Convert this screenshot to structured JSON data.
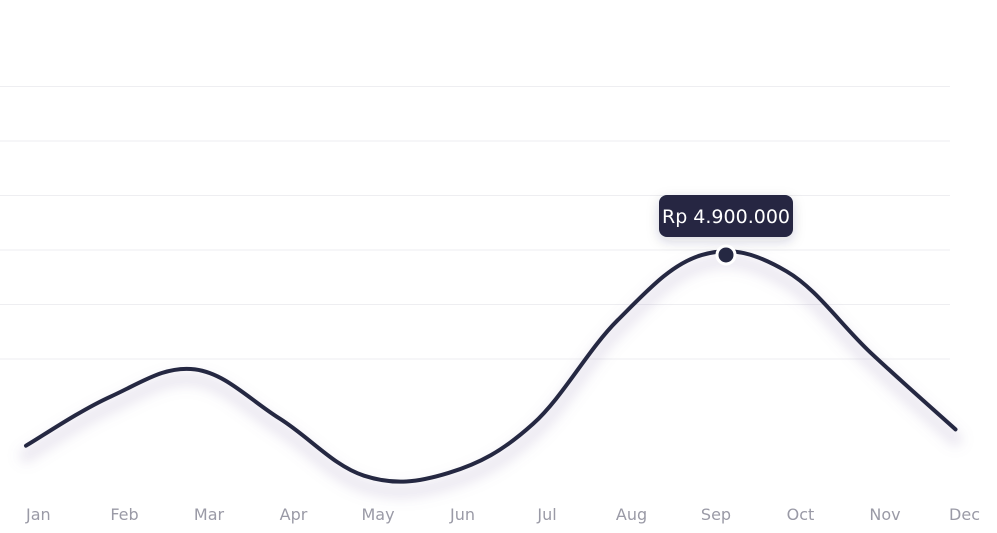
{
  "chart_data": {
    "type": "line",
    "categories": [
      "Jan",
      "Feb",
      "Mar",
      "Apr",
      "May",
      "Jun",
      "Jul",
      "Aug",
      "Sep",
      "Oct",
      "Nov",
      "Dec"
    ],
    "series": [
      {
        "values": [
          1400000,
          2300000,
          2800000,
          1900000,
          850000,
          900000,
          1800000,
          3700000,
          4900000,
          4600000,
          3100000,
          1700000
        ]
      }
    ],
    "ylim": [
      0,
      8000000
    ],
    "grid": true,
    "highlight": {
      "category": "Sep",
      "value": 4900000,
      "label": "Rp 4.900.000"
    },
    "colors": {
      "line": "#252842",
      "grid": "#eeeef1",
      "tick_label": "#9a9aa6",
      "tooltip_bg": "#252842",
      "tooltip_text": "#ffffff"
    }
  }
}
